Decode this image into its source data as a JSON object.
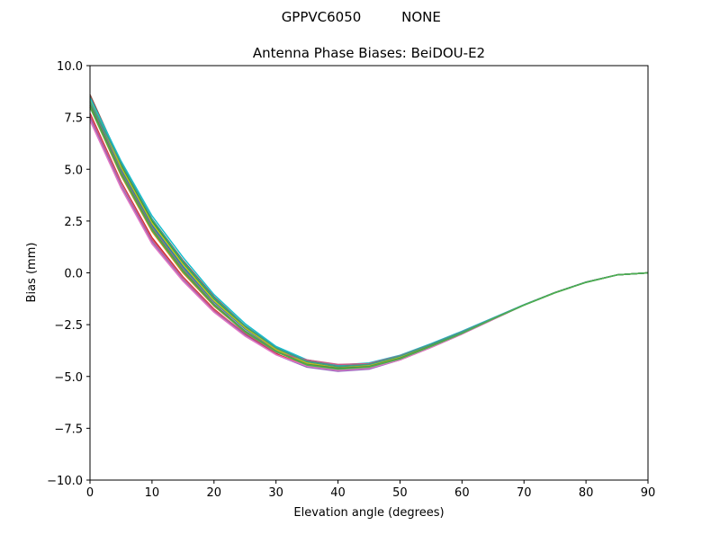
{
  "page": {
    "header_left": "GPPVC6050",
    "header_right": "NONE"
  },
  "chart_data": {
    "type": "line",
    "title": "Antenna Phase Biases: BeiDOU-E2",
    "xlabel": "Elevation angle (degrees)",
    "ylabel": "Bias (mm)",
    "xlim": [
      0,
      90
    ],
    "ylim": [
      -10,
      10
    ],
    "grid": false,
    "legend": "none",
    "x_ticks": [
      {
        "value": 0,
        "label": "0"
      },
      {
        "value": 10,
        "label": "10"
      },
      {
        "value": 20,
        "label": "20"
      },
      {
        "value": 30,
        "label": "30"
      },
      {
        "value": 40,
        "label": "40"
      },
      {
        "value": 50,
        "label": "50"
      },
      {
        "value": 60,
        "label": "60"
      },
      {
        "value": 70,
        "label": "70"
      },
      {
        "value": 80,
        "label": "80"
      },
      {
        "value": 90,
        "label": "90"
      }
    ],
    "y_ticks": [
      {
        "value": 10,
        "label": "10.0"
      },
      {
        "value": 7.5,
        "label": "7.5"
      },
      {
        "value": 5,
        "label": "5.0"
      },
      {
        "value": 2.5,
        "label": "2.5"
      },
      {
        "value": 0,
        "label": "0.0"
      },
      {
        "value": -2.5,
        "label": "−2.5"
      },
      {
        "value": -5,
        "label": "−5.0"
      },
      {
        "value": -7.5,
        "label": "−7.5"
      },
      {
        "value": -10,
        "label": "−10.0"
      }
    ],
    "x": [
      0,
      5,
      10,
      15,
      20,
      25,
      30,
      35,
      40,
      45,
      50,
      55,
      60,
      65,
      70,
      75,
      80,
      85,
      90
    ],
    "series": [
      {
        "color": "#1f77b4",
        "values": [
          8.3,
          5.0,
          2.3,
          0.3,
          -1.4,
          -2.7,
          -3.7,
          -4.35,
          -4.6,
          -4.5,
          -4.1,
          -3.5,
          -2.9,
          -2.2,
          -1.55,
          -0.95,
          -0.45,
          -0.1,
          0.0
        ]
      },
      {
        "color": "#ff7f0e",
        "values": [
          8.0,
          4.7,
          2.0,
          0.0,
          -1.6,
          -2.85,
          -3.8,
          -4.45,
          -4.65,
          -4.55,
          -4.15,
          -3.55,
          -2.9,
          -2.2,
          -1.55,
          -0.95,
          -0.45,
          -0.1,
          0.0
        ]
      },
      {
        "color": "#2ca02c",
        "values": [
          8.5,
          5.2,
          2.5,
          0.5,
          -1.25,
          -2.6,
          -3.65,
          -4.3,
          -4.55,
          -4.45,
          -4.05,
          -3.45,
          -2.85,
          -2.2,
          -1.55,
          -0.95,
          -0.45,
          -0.1,
          0.0
        ]
      },
      {
        "color": "#d62728",
        "values": [
          7.7,
          4.4,
          1.7,
          -0.2,
          -1.75,
          -2.95,
          -3.9,
          -4.5,
          -4.7,
          -4.6,
          -4.2,
          -3.6,
          -2.95,
          -2.25,
          -1.55,
          -0.95,
          -0.45,
          -0.1,
          0.0
        ]
      },
      {
        "color": "#9467bd",
        "values": [
          7.5,
          4.2,
          1.5,
          -0.35,
          -1.85,
          -3.0,
          -3.95,
          -4.55,
          -4.75,
          -4.65,
          -4.2,
          -3.6,
          -2.95,
          -2.25,
          -1.55,
          -0.95,
          -0.45,
          -0.1,
          0.0
        ]
      },
      {
        "color": "#8c564b",
        "values": [
          8.6,
          5.3,
          2.6,
          0.6,
          -1.15,
          -2.55,
          -3.6,
          -4.25,
          -4.5,
          -4.4,
          -4.0,
          -3.45,
          -2.85,
          -2.2,
          -1.55,
          -0.95,
          -0.45,
          -0.1,
          0.0
        ]
      },
      {
        "color": "#e377c2",
        "values": [
          7.35,
          4.1,
          1.4,
          -0.4,
          -1.9,
          -3.05,
          -3.95,
          -4.5,
          -4.7,
          -4.6,
          -4.2,
          -3.6,
          -2.95,
          -2.25,
          -1.55,
          -0.95,
          -0.45,
          -0.1,
          0.0
        ]
      },
      {
        "color": "#7f7f7f",
        "values": [
          8.2,
          4.9,
          2.2,
          0.2,
          -1.5,
          -2.8,
          -3.75,
          -4.4,
          -4.62,
          -4.52,
          -4.12,
          -3.52,
          -2.9,
          -2.2,
          -1.55,
          -0.95,
          -0.45,
          -0.1,
          0.0
        ]
      },
      {
        "color": "#bcbd22",
        "values": [
          8.4,
          5.1,
          2.4,
          0.4,
          -1.35,
          -2.65,
          -3.7,
          -4.35,
          -4.58,
          -4.48,
          -4.08,
          -3.48,
          -2.88,
          -2.2,
          -1.55,
          -0.95,
          -0.45,
          -0.1,
          0.0
        ]
      },
      {
        "color": "#17becf",
        "values": [
          8.45,
          5.4,
          2.75,
          0.75,
          -1.05,
          -2.45,
          -3.55,
          -4.2,
          -4.45,
          -4.35,
          -3.98,
          -3.42,
          -2.82,
          -2.18,
          -1.54,
          -0.95,
          -0.45,
          -0.1,
          0.0
        ]
      },
      {
        "color": "#c85a82",
        "values": [
          7.6,
          4.35,
          1.6,
          -0.25,
          -1.8,
          -2.9,
          -3.85,
          -4.2,
          -4.42,
          -4.38,
          -4.0,
          -3.45,
          -2.85,
          -2.2,
          -1.55,
          -0.95,
          -0.45,
          -0.1,
          0.0
        ]
      },
      {
        "color": "#5a8a3a",
        "values": [
          8.1,
          4.8,
          2.1,
          0.1,
          -1.55,
          -2.82,
          -3.78,
          -4.42,
          -4.6,
          -4.52,
          -4.12,
          -3.52,
          -2.9,
          -2.22,
          -1.56,
          -0.96,
          -0.46,
          -0.1,
          0.0
        ]
      },
      {
        "color": "#3aa08a",
        "values": [
          8.25,
          5.3,
          2.6,
          0.55,
          -1.2,
          -2.55,
          -3.62,
          -4.28,
          -4.52,
          -4.42,
          -4.02,
          -3.45,
          -2.86,
          -2.2,
          -1.55,
          -0.95,
          -0.45,
          -0.1,
          0.0
        ]
      },
      {
        "color": "#4caf50",
        "values": [
          8.0,
          4.75,
          2.05,
          0.05,
          -1.58,
          -2.85,
          -3.8,
          -4.45,
          -4.65,
          -4.55,
          -4.15,
          -3.55,
          -2.92,
          -2.22,
          -1.56,
          -0.96,
          -0.46,
          -0.1,
          0.0
        ]
      }
    ]
  }
}
